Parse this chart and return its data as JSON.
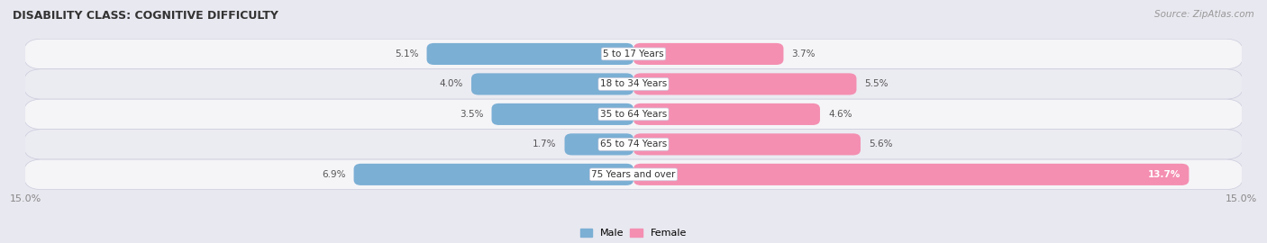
{
  "title": "DISABILITY CLASS: COGNITIVE DIFFICULTY",
  "source": "Source: ZipAtlas.com",
  "categories": [
    "5 to 17 Years",
    "18 to 34 Years",
    "35 to 64 Years",
    "65 to 74 Years",
    "75 Years and over"
  ],
  "male_values": [
    5.1,
    4.0,
    3.5,
    1.7,
    6.9
  ],
  "female_values": [
    3.7,
    5.5,
    4.6,
    5.6,
    13.7
  ],
  "max_val": 15.0,
  "male_color": "#7bafd4",
  "female_color": "#f48fb1",
  "bg_color": "#e8e8f0",
  "row_bg_even": "#f5f5f8",
  "row_bg_odd": "#ebebf2",
  "label_color": "#555555",
  "title_color": "#333333",
  "axis_label_color": "#888888",
  "legend_male_color": "#7bafd4",
  "legend_female_color": "#f48fb1",
  "white_text_threshold": 10.0
}
